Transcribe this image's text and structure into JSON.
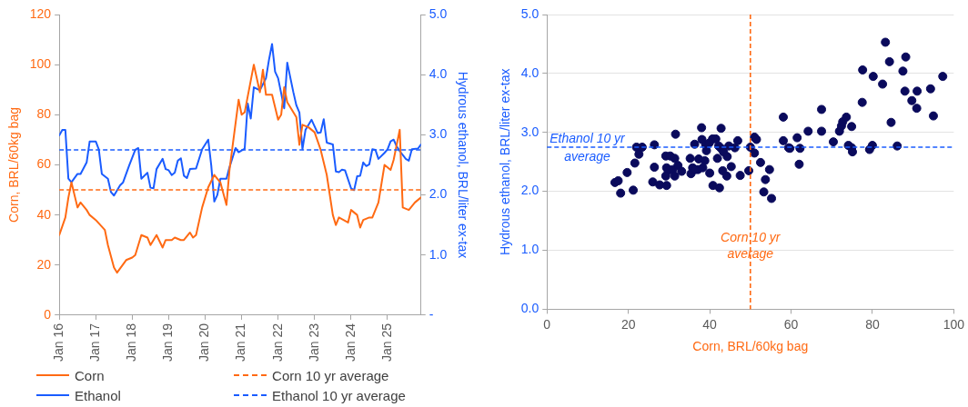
{
  "chart_data": [
    {
      "type": "line",
      "ylabel": "Corn, BRL/60kg bag",
      "y2label": "Hydrous ethanol, BRL/liter ex-tax",
      "legend": "bottom",
      "grid": false,
      "xlim": [
        "2016-01",
        "2025-12"
      ],
      "xticks": [
        {
          "value": "2016-01",
          "label": "Jan 16"
        },
        {
          "value": "2017-01",
          "label": "Jan 17"
        },
        {
          "value": "2018-01",
          "label": "Jan 18"
        },
        {
          "value": "2019-01",
          "label": "Jan 19"
        },
        {
          "value": "2020-01",
          "label": "Jan 20"
        },
        {
          "value": "2021-01",
          "label": "Jan 21"
        },
        {
          "value": "2022-01",
          "label": "Jan 22"
        },
        {
          "value": "2023-01",
          "label": "Jan 23"
        },
        {
          "value": "2024-01",
          "label": "Jan 24"
        },
        {
          "value": "2025-01",
          "label": "Jan 25"
        }
      ],
      "ylim": [
        0,
        120
      ],
      "yticks": [
        0,
        20,
        40,
        60,
        80,
        100,
        120
      ],
      "y2lim": [
        0,
        5
      ],
      "y2ticks": [
        {
          "value": 0,
          "label": "-"
        },
        {
          "value": 1,
          "label": "1.0"
        },
        {
          "value": 2,
          "label": "2.0"
        },
        {
          "value": 3,
          "label": "3.0"
        },
        {
          "value": 4,
          "label": "4.0"
        },
        {
          "value": 5,
          "label": "5.0"
        }
      ],
      "series": [
        {
          "name": "Corn",
          "color": "#ff6a13",
          "x": [
            "2016-01",
            "2016-03",
            "2016-04",
            "2016-05",
            "2016-07",
            "2016-08",
            "2016-10",
            "2016-11",
            "2017-01",
            "2017-04",
            "2017-05",
            "2017-07",
            "2017-08",
            "2017-11",
            "2018-01",
            "2018-02",
            "2018-04",
            "2018-06",
            "2018-07",
            "2018-09",
            "2018-11",
            "2018-12",
            "2019-02",
            "2019-03",
            "2019-05",
            "2019-06",
            "2019-08",
            "2019-09",
            "2019-10",
            "2019-12",
            "2020-02",
            "2020-04",
            "2020-06",
            "2020-08",
            "2020-09",
            "2020-12",
            "2021-01",
            "2021-02",
            "2021-05",
            "2021-07",
            "2021-08",
            "2021-09",
            "2021-11",
            "2022-01",
            "2022-02",
            "2022-03",
            "2022-04",
            "2022-07",
            "2022-08",
            "2022-09",
            "2022-11",
            "2023-01",
            "2023-03",
            "2023-05",
            "2023-07",
            "2023-08",
            "2023-09",
            "2023-12",
            "2024-01",
            "2024-03",
            "2024-04",
            "2024-05",
            "2024-07",
            "2024-08",
            "2024-10",
            "2024-12",
            "2025-02",
            "2025-03",
            "2025-05",
            "2025-06",
            "2025-08",
            "2025-10",
            "2025-12"
          ],
          "values": [
            32,
            39,
            47,
            53,
            43,
            45,
            42,
            40,
            38,
            34,
            28,
            19,
            17,
            22,
            23,
            24,
            32,
            31,
            28,
            32,
            27,
            30,
            30,
            31,
            30,
            30,
            33,
            31,
            32,
            43,
            51,
            56,
            53,
            44,
            58,
            86,
            80,
            81,
            100,
            89,
            98,
            88,
            88,
            78,
            80,
            91,
            85,
            79,
            68,
            76,
            75,
            73,
            66,
            56,
            40,
            36,
            39,
            37,
            42,
            40,
            35,
            38,
            39,
            39,
            45,
            60,
            58,
            62,
            74,
            43,
            42,
            45,
            47
          ]
        },
        {
          "name": "Ethanol",
          "color": "#1a5cff",
          "axis": "y2",
          "x": [
            "2016-01",
            "2016-02",
            "2016-03",
            "2016-04",
            "2016-05",
            "2016-07",
            "2016-08",
            "2016-10",
            "2016-11",
            "2017-01",
            "2017-02",
            "2017-03",
            "2017-05",
            "2017-06",
            "2017-07",
            "2017-09",
            "2017-10",
            "2017-12",
            "2018-02",
            "2018-03",
            "2018-04",
            "2018-06",
            "2018-07",
            "2018-08",
            "2018-09",
            "2018-11",
            "2018-12",
            "2019-01",
            "2019-02",
            "2019-03",
            "2019-04",
            "2019-05",
            "2019-06",
            "2019-07",
            "2019-08",
            "2019-10",
            "2019-12",
            "2020-02",
            "2020-03",
            "2020-04",
            "2020-05",
            "2020-06",
            "2020-08",
            "2020-09",
            "2020-11",
            "2020-12",
            "2021-02",
            "2021-03",
            "2021-04",
            "2021-05",
            "2021-07",
            "2021-09",
            "2021-10",
            "2021-11",
            "2021-12",
            "2022-01",
            "2022-03",
            "2022-04",
            "2022-06",
            "2022-07",
            "2022-08",
            "2022-09",
            "2022-10",
            "2022-12",
            "2023-02",
            "2023-03",
            "2023-04",
            "2023-05",
            "2023-07",
            "2023-08",
            "2023-09",
            "2023-10",
            "2023-11",
            "2024-01",
            "2024-02",
            "2024-03",
            "2024-04",
            "2024-05",
            "2024-06",
            "2024-07",
            "2024-08",
            "2024-09",
            "2024-10",
            "2024-12",
            "2025-01",
            "2025-02",
            "2025-03",
            "2025-04",
            "2025-05",
            "2025-07",
            "2025-08",
            "2025-09",
            "2025-11",
            "2025-12"
          ],
          "values": [
            2.99,
            3.08,
            3.08,
            2.27,
            2.21,
            2.35,
            2.35,
            2.54,
            2.89,
            2.89,
            2.76,
            2.35,
            2.27,
            2.05,
            1.99,
            2.16,
            2.21,
            2.49,
            2.75,
            2.78,
            2.27,
            2.37,
            2.12,
            2.11,
            2.43,
            2.6,
            2.43,
            2.41,
            2.33,
            2.37,
            2.57,
            2.61,
            2.32,
            2.28,
            2.43,
            2.44,
            2.76,
            2.92,
            2.49,
            1.89,
            2.0,
            2.27,
            2.27,
            2.46,
            2.78,
            2.71,
            2.77,
            3.52,
            3.27,
            3.79,
            3.74,
            3.94,
            4.25,
            4.51,
            4.05,
            3.94,
            3.44,
            4.2,
            3.71,
            3.49,
            3.37,
            2.76,
            3.08,
            3.25,
            3.03,
            3.04,
            3.26,
            2.87,
            2.84,
            2.39,
            2.38,
            2.42,
            2.41,
            2.11,
            2.08,
            2.31,
            2.32,
            2.54,
            2.48,
            2.51,
            2.76,
            2.75,
            2.6,
            2.7,
            2.76,
            2.89,
            2.92,
            2.81,
            2.73,
            2.6,
            2.57,
            2.76,
            2.77,
            2.84
          ]
        }
      ],
      "ref_lines": [
        {
          "axis": "y",
          "value": 50,
          "label": "Corn 10 yr average",
          "color": "#ff6a13",
          "line_style": "dashed"
        },
        {
          "axis": "y2",
          "value": 2.75,
          "label": "Ethanol 10 yr average",
          "color": "#1a5cff",
          "line_style": "dashed"
        }
      ]
    },
    {
      "type": "scatter",
      "xlabel": "Corn, BRL/60kg bag",
      "ylabel": "Hydrous ethanol, BRL/liter ex-tax",
      "grid": "y",
      "marker": "circle",
      "color": "#0a0a5c",
      "xlim": [
        0,
        100
      ],
      "xticks": [
        0,
        20,
        40,
        60,
        80,
        100
      ],
      "ylim": [
        0,
        5
      ],
      "yticks": [
        {
          "value": 0,
          "label": "0.0"
        },
        {
          "value": 1,
          "label": "1.0"
        },
        {
          "value": 2,
          "label": "2.0"
        },
        {
          "value": 3,
          "label": "3.0"
        },
        {
          "value": 4,
          "label": "4.0"
        },
        {
          "value": 5,
          "label": "5.0"
        }
      ],
      "x": [
        16.7,
        17.5,
        18.1,
        19.7,
        21.2,
        21.6,
        22.0,
        22.6,
        23.4,
        26.4,
        26.4,
        26.0,
        27.7,
        29.4,
        29.2,
        30.3,
        31.6,
        31.4,
        29.4,
        29.8,
        30.9,
        32.2,
        33.1,
        29.2,
        31.4,
        35.2,
        35.8,
        35.4,
        36.3,
        37.3,
        38.0,
        38.1,
        39.0,
        38.8,
        39.2,
        37.1,
        38.3,
        36.4,
        39.9,
        40.7,
        41.5,
        40.0,
        40.8,
        42.4,
        42.8,
        42.2,
        41.9,
        42.8,
        43.4,
        44.3,
        44.7,
        43.2,
        44.2,
        45.3,
        46.2,
        46.9,
        47.5,
        49.6,
        50.0,
        51.0,
        51.5,
        51.0,
        52.5,
        53.7,
        54.7,
        53.3,
        55.2,
        58.1,
        58.1,
        59.4,
        59.7,
        61.5,
        62.2,
        62.0,
        64.2,
        67.5,
        67.5,
        70.4,
        71.9,
        72.4,
        72.7,
        73.6,
        74.9,
        74.1,
        74.9,
        75.1,
        77.5,
        77.6,
        79.3,
        80.0,
        80.2,
        82.5,
        83.2,
        84.2,
        84.6,
        86.1,
        87.5,
        88.2,
        88.0,
        89.7,
        91.0,
        90.9,
        94.3,
        95.0,
        97.3
      ],
      "values": [
        2.15,
        2.18,
        1.97,
        2.32,
        2.02,
        2.48,
        2.75,
        2.63,
        2.75,
        2.79,
        2.41,
        2.16,
        2.11,
        2.1,
        2.6,
        2.6,
        2.97,
        2.56,
        2.4,
        2.35,
        2.37,
        2.44,
        2.34,
        2.26,
        2.26,
        2.56,
        2.4,
        2.3,
        2.8,
        2.55,
        3.08,
        2.88,
        2.79,
        2.52,
        2.69,
        2.37,
        2.4,
        2.37,
        2.82,
        2.89,
        2.89,
        2.31,
        2.1,
        2.06,
        3.07,
        2.77,
        2.56,
        2.73,
        2.67,
        2.59,
        2.77,
        2.35,
        2.26,
        2.42,
        2.74,
        2.86,
        2.27,
        2.35,
        2.75,
        2.92,
        2.88,
        2.65,
        2.49,
        2.2,
        2.37,
        1.99,
        1.88,
        3.26,
        2.86,
        2.74,
        2.73,
        2.91,
        2.73,
        2.46,
        3.02,
        3.39,
        3.02,
        2.84,
        3.02,
        3.11,
        3.18,
        3.26,
        3.1,
        2.78,
        2.74,
        2.67,
        3.51,
        4.06,
        2.71,
        2.78,
        3.95,
        3.82,
        4.53,
        4.2,
        3.17,
        2.77,
        4.04,
        4.28,
        3.7,
        3.54,
        3.7,
        3.41,
        3.74,
        3.28,
        3.95
      ],
      "ref_lines": [
        {
          "axis": "x",
          "value": 50,
          "label": "Corn 10 yr average",
          "color": "#ff6a13",
          "line_style": "dashed"
        },
        {
          "axis": "y",
          "value": 2.75,
          "label": "Ethanol 10 yr average",
          "color": "#1a5cff",
          "line_style": "dashed"
        }
      ]
    }
  ]
}
